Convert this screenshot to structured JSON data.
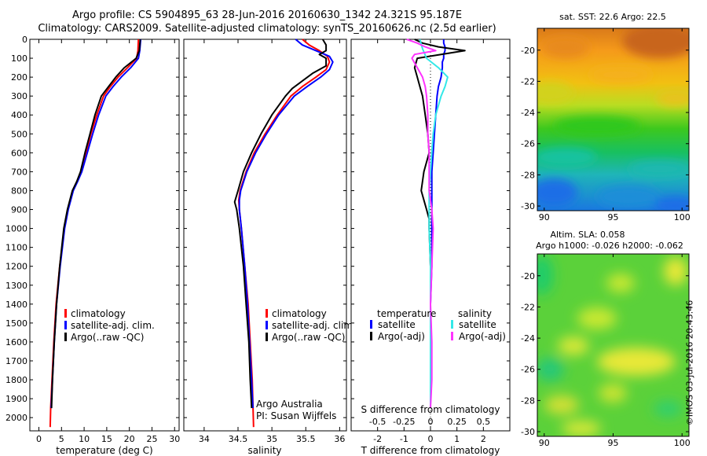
{
  "header": {
    "line1": "Argo profile: CS 5904895_63 28-Jun-2016 20160630_1342 24.321S 95.187E",
    "line2": "Climatology: CARS2009. Satellite-adjusted climatology: synTS_20160626.nc (2.5d earlier)"
  },
  "colors": {
    "climatology": "#ff0000",
    "satellite": "#0000ff",
    "argo": "#000000",
    "sat_salinity": "#33e8e8",
    "argo_salinity": "#ff33ff"
  },
  "legend": {
    "climatology": "climatology",
    "satellite_adj": "satellite-adj. clim.",
    "argo": "Argo(..raw -QC)"
  },
  "diff_legend": {
    "temp_title": "temperature",
    "sal_title": "salinity",
    "satellite": "satellite",
    "argo_adj": "Argo(-adj)"
  },
  "credit": {
    "org": "Argo Australia",
    "pi": "PI: Susan Wijffels"
  },
  "stamp": "©IMOS 03-Jul-2016 20:43:46",
  "chart_data": [
    {
      "type": "line",
      "xlabel": "temperature (deg C)",
      "xlim": [
        -2,
        31
      ],
      "ylim": [
        2070,
        0
      ],
      "xticks": [
        "0",
        "5",
        "10",
        "15",
        "20",
        "25",
        "30"
      ],
      "yticks": [
        "0",
        "100",
        "200",
        "300",
        "400",
        "500",
        "600",
        "700",
        "800",
        "900",
        "1000",
        "1100",
        "1200",
        "1300",
        "1400",
        "1500",
        "1600",
        "1700",
        "1800",
        "1900",
        "2000"
      ],
      "series": [
        {
          "name": "climatology",
          "depth": [
            0,
            60,
            100,
            150,
            200,
            250,
            300,
            400,
            500,
            600,
            700,
            750,
            800,
            900,
            1000,
            1200,
            1400,
            1600,
            1800,
            1950,
            2050
          ],
          "values": [
            22.0,
            21.9,
            21.6,
            19.6,
            17.5,
            15.8,
            14.3,
            12.8,
            11.5,
            10.4,
            9.3,
            8.5,
            7.5,
            6.4,
            5.6,
            4.6,
            3.8,
            3.3,
            2.9,
            2.6,
            2.5
          ]
        },
        {
          "name": "satellite-adj. clim.",
          "depth": [
            0,
            60,
            100,
            150,
            200,
            250,
            300,
            400,
            500,
            600,
            700,
            750,
            800,
            900,
            1000,
            1200,
            1400,
            1600,
            1800,
            1950
          ],
          "values": [
            22.5,
            22.3,
            22.0,
            20.3,
            18.2,
            16.4,
            14.8,
            13.2,
            11.9,
            10.7,
            9.5,
            8.6,
            7.6,
            6.5,
            5.7,
            4.7,
            3.9,
            3.4,
            3.0,
            2.7
          ]
        },
        {
          "name": "Argo(..raw -QC)",
          "depth": [
            0,
            60,
            100,
            150,
            200,
            250,
            300,
            400,
            500,
            600,
            700,
            750,
            800,
            900,
            1000,
            1200,
            1400,
            1600,
            1800,
            1950
          ],
          "values": [
            22.4,
            22.2,
            21.5,
            18.9,
            17.0,
            15.4,
            13.8,
            12.4,
            11.3,
            10.2,
            9.2,
            8.4,
            7.4,
            6.3,
            5.5,
            4.6,
            3.9,
            3.4,
            3.0,
            2.8
          ]
        }
      ]
    },
    {
      "type": "line",
      "xlabel": "salinity",
      "xlim": [
        33.7,
        36.1
      ],
      "ylim": [
        2070,
        0
      ],
      "xticks": [
        "34",
        "34.5",
        "35",
        "35.5",
        "36"
      ],
      "series": [
        {
          "name": "climatology",
          "depth": [
            0,
            30,
            60,
            90,
            120,
            160,
            200,
            250,
            300,
            400,
            500,
            600,
            700,
            800,
            850,
            900,
            1000,
            1200,
            1400,
            1600,
            1800,
            2050
          ],
          "values": [
            35.45,
            35.55,
            35.7,
            35.82,
            35.85,
            35.8,
            35.65,
            35.45,
            35.28,
            35.08,
            34.9,
            34.74,
            34.62,
            34.53,
            34.51,
            34.52,
            34.55,
            34.6,
            34.65,
            34.68,
            34.71,
            34.73
          ]
        },
        {
          "name": "satellite-adj. clim.",
          "depth": [
            0,
            30,
            60,
            90,
            120,
            160,
            200,
            250,
            300,
            400,
            500,
            600,
            700,
            800,
            850,
            900,
            1000,
            1200,
            1400,
            1600,
            1800,
            1950
          ],
          "values": [
            35.35,
            35.45,
            35.65,
            35.85,
            35.9,
            35.85,
            35.72,
            35.52,
            35.33,
            35.1,
            34.92,
            34.76,
            34.63,
            34.54,
            34.52,
            34.52,
            34.55,
            34.6,
            34.64,
            34.67,
            34.7,
            34.72
          ]
        },
        {
          "name": "Argo(..raw -QC)",
          "depth": [
            0,
            30,
            60,
            80,
            100,
            140,
            180,
            220,
            260,
            300,
            400,
            500,
            600,
            700,
            800,
            860,
            900,
            1000,
            1200,
            1400,
            1600,
            1800,
            1950
          ],
          "values": [
            35.75,
            35.8,
            35.8,
            35.7,
            35.8,
            35.8,
            35.6,
            35.45,
            35.3,
            35.2,
            35.0,
            34.84,
            34.7,
            34.58,
            34.5,
            34.45,
            34.48,
            34.52,
            34.58,
            34.62,
            34.66,
            34.68,
            34.7
          ]
        }
      ]
    },
    {
      "type": "line",
      "xlabel": "T difference from climatology",
      "xlabel_top": "S difference from climatology",
      "xlim": [
        -3.0,
        3.0
      ],
      "ylim": [
        2070,
        0
      ],
      "xticks": [
        "-2",
        "-1",
        "0",
        "1",
        "2"
      ],
      "xticks_top": [
        "-0.5",
        "-0.25",
        "0",
        "0.25",
        "0.5"
      ],
      "series": [
        {
          "name": "temperature satellite",
          "depth": [
            0,
            20,
            40,
            60,
            80,
            100,
            120,
            150,
            200,
            250,
            300,
            400,
            500,
            600,
            700,
            800,
            900,
            1000,
            1200,
            1400,
            1600,
            1800,
            1950
          ],
          "values": [
            0.5,
            0.5,
            0.55,
            0.55,
            0.5,
            0.5,
            0.45,
            0.45,
            0.4,
            0.3,
            0.25,
            0.2,
            0.15,
            0.1,
            0.05,
            0.05,
            0.05,
            0.05,
            0.05,
            0.0,
            0.0,
            0.0,
            0.0
          ]
        },
        {
          "name": "temperature Argo(-adj)",
          "depth": [
            0,
            20,
            40,
            60,
            80,
            100,
            150,
            200,
            250,
            300,
            350,
            400,
            500,
            600,
            700,
            800,
            900,
            950,
            1000,
            1200,
            1400,
            1600,
            1800,
            1950
          ],
          "values": [
            -0.6,
            -0.3,
            0.3,
            1.3,
            0.4,
            -0.5,
            -0.6,
            -0.5,
            -0.4,
            -0.3,
            -0.25,
            -0.2,
            -0.1,
            -0.05,
            -0.25,
            -0.35,
            -0.15,
            -0.05,
            -0.05,
            0.0,
            0.0,
            0.0,
            0.0,
            0.0
          ]
        },
        {
          "name": "salinity satellite",
          "depth": [
            0,
            50,
            100,
            150,
            200,
            250,
            300,
            400,
            500,
            600,
            700,
            800,
            1000,
            1200,
            1400,
            1600,
            1800,
            1950
          ],
          "values": [
            -0.4,
            -0.3,
            -0.15,
            0.3,
            0.65,
            0.55,
            0.4,
            0.2,
            0.1,
            0.05,
            0.0,
            -0.05,
            -0.05,
            0.0,
            0.0,
            0.0,
            0.0,
            0.0
          ]
        },
        {
          "name": "salinity Argo(-adj)",
          "depth": [
            0,
            20,
            40,
            60,
            80,
            100,
            150,
            200,
            250,
            300,
            400,
            500,
            600,
            700,
            800,
            900,
            1000,
            1200,
            1400,
            1600,
            1800,
            1950
          ],
          "values": [
            -0.9,
            -0.5,
            -0.2,
            0.2,
            -0.6,
            -0.7,
            -0.5,
            -0.3,
            -0.2,
            -0.15,
            -0.1,
            -0.1,
            -0.05,
            -0.05,
            -0.05,
            0.05,
            0.1,
            0.05,
            0.0,
            0.05,
            0.05,
            0.0
          ]
        }
      ]
    },
    {
      "type": "heatmap",
      "title": "sat. SST: 22.6  Argo: 22.5",
      "xlim": [
        89.5,
        100.5
      ],
      "ylim": [
        -30.3,
        -18.6
      ],
      "xticks": [
        "90",
        "95",
        "100"
      ],
      "yticks": [
        "-20",
        "-22",
        "-24",
        "-26",
        "-28",
        "-30"
      ],
      "note": "sea surface temperature, warm (brown/orange) in north to cool (blue) in south"
    },
    {
      "type": "heatmap",
      "title": "Altim. SLA: 0.058",
      "subtitle": "Argo h1000: -0.026  h2000: -0.062",
      "xlim": [
        89.5,
        100.5
      ],
      "ylim": [
        -30.3,
        -18.6
      ],
      "xticks": [
        "90",
        "95",
        "100"
      ],
      "yticks": [
        "-20",
        "-22",
        "-24",
        "-26",
        "-28",
        "-30"
      ],
      "note": "sea level anomaly, mostly green with yellow patches"
    }
  ]
}
